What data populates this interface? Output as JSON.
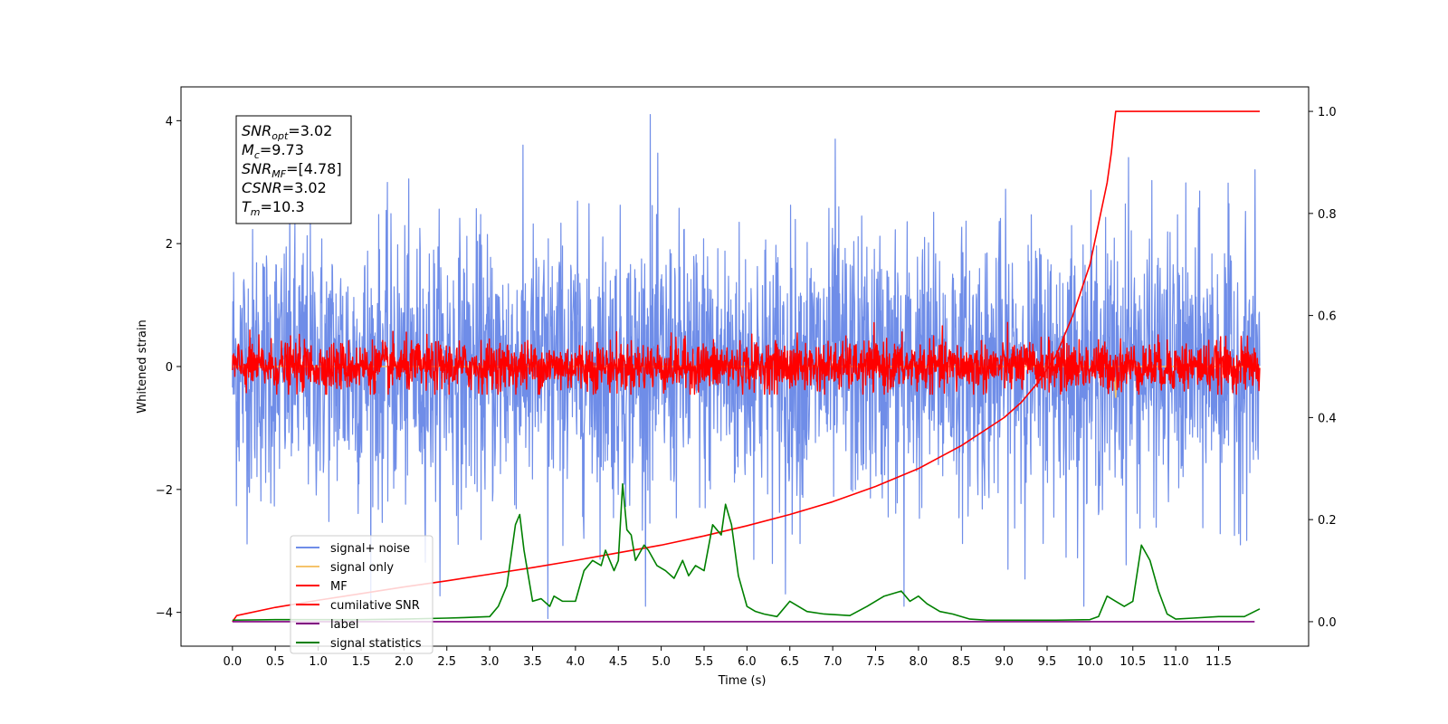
{
  "chart_data": {
    "type": "line",
    "xlabel": "Time (s)",
    "ylabel": "Whitened strain",
    "x_ticks": [
      "0.0",
      "0.5",
      "1.0",
      "1.5",
      "2.0",
      "2.5",
      "3.0",
      "3.5",
      "4.0",
      "4.5",
      "5.0",
      "5.5",
      "6.0",
      "6.5",
      "7.0",
      "7.5",
      "8.0",
      "8.5",
      "9.0",
      "9.5",
      "10.0",
      "10.5",
      "11.0",
      "11.5"
    ],
    "xlim": [
      -0.6,
      12.55
    ],
    "ylim": [
      -4.55,
      4.55
    ],
    "y_ticks": [
      -4,
      -2,
      0,
      2,
      4
    ],
    "y2lim": [
      -0.048,
      1.048
    ],
    "y2_ticks": [
      "0.0",
      "0.2",
      "0.4",
      "0.6",
      "0.8",
      "1.0"
    ],
    "y2_tick_values": [
      0,
      0.2,
      0.4,
      0.6,
      0.8,
      1.0
    ],
    "grid": false,
    "legend_position": "lower-left",
    "annotation": [
      {
        "base": "SNR",
        "sub": "opt",
        "value": "=3.02"
      },
      {
        "base": "M",
        "sub": "c",
        "value": "=9.73"
      },
      {
        "base": "SNR",
        "sub": "MF",
        "value": "=[4.78]"
      },
      {
        "base": "CSNR",
        "sub": "",
        "value": "=3.02"
      },
      {
        "base": "T",
        "sub": "m",
        "value": "=10.3"
      }
    ],
    "series": [
      {
        "name": "signal+ noise",
        "axis": "left",
        "color": "#6f8de8",
        "description": "whitened noise, approx. std 1.1, range about -4.1 to 4.1, t from 0 to 11.98",
        "noise_std": 1.1,
        "x_range": [
          0,
          11.98
        ],
        "spikes": [
          [
            4.87,
            4.1
          ],
          [
            3.68,
            -4.1
          ],
          [
            7.03,
            3.7
          ],
          [
            7.83,
            -3.9
          ],
          [
            10.45,
            3.4
          ],
          [
            6.45,
            -3.7
          ]
        ]
      },
      {
        "name": "signal only",
        "axis": "left",
        "color": "#f5c36b",
        "x": [
          0,
          10.28,
          10.3,
          10.32,
          11.98
        ],
        "y": [
          0,
          0,
          -0.5,
          0,
          0
        ]
      },
      {
        "name": "MF",
        "axis": "left",
        "color": "#ff0000",
        "description": "matched filter output, approx. std 0.2, range about -0.45 to 0.85",
        "noise_std": 0.2,
        "x_range": [
          0,
          11.98
        ]
      },
      {
        "name": "cumilative SNR",
        "axis": "right",
        "color": "#ff0000",
        "x": [
          0,
          0.05,
          0.5,
          1,
          1.5,
          2,
          2.5,
          3,
          3.5,
          4,
          4.5,
          5,
          5.5,
          6,
          6.5,
          7,
          7.5,
          8,
          8.5,
          9,
          9.2,
          9.4,
          9.6,
          9.8,
          10.0,
          10.1,
          10.2,
          10.25,
          10.28,
          10.3,
          11.98
        ],
        "y": [
          0.0,
          0.012,
          0.028,
          0.042,
          0.055,
          0.068,
          0.08,
          0.093,
          0.106,
          0.12,
          0.135,
          0.15,
          0.168,
          0.188,
          0.21,
          0.235,
          0.265,
          0.3,
          0.345,
          0.4,
          0.43,
          0.47,
          0.52,
          0.6,
          0.7,
          0.78,
          0.86,
          0.92,
          0.97,
          1.0,
          1.0
        ]
      },
      {
        "name": "label",
        "axis": "right",
        "color": "#800080",
        "x": [
          0,
          11.92
        ],
        "y": [
          0,
          0
        ]
      },
      {
        "name": "signal statistics",
        "axis": "right",
        "color": "#008000",
        "x": [
          0,
          0.5,
          1,
          1.5,
          2,
          2.5,
          2.7,
          3.0,
          3.1,
          3.2,
          3.3,
          3.35,
          3.4,
          3.5,
          3.6,
          3.7,
          3.75,
          3.85,
          4.0,
          4.1,
          4.2,
          4.3,
          4.35,
          4.45,
          4.5,
          4.55,
          4.6,
          4.65,
          4.7,
          4.8,
          4.85,
          4.95,
          5.05,
          5.15,
          5.25,
          5.32,
          5.4,
          5.5,
          5.6,
          5.7,
          5.75,
          5.82,
          5.9,
          6.0,
          6.1,
          6.2,
          6.35,
          6.5,
          6.6,
          6.7,
          6.9,
          7.2,
          7.4,
          7.6,
          7.8,
          7.9,
          8.0,
          8.1,
          8.25,
          8.4,
          8.6,
          8.8,
          9.2,
          9.6,
          10.0,
          10.1,
          10.2,
          10.3,
          10.4,
          10.5,
          10.6,
          10.7,
          10.8,
          10.9,
          11.0,
          11.2,
          11.5,
          11.8,
          11.98
        ],
        "y": [
          0.003,
          0.004,
          0.004,
          0.004,
          0.005,
          0.007,
          0.008,
          0.01,
          0.03,
          0.07,
          0.19,
          0.21,
          0.14,
          0.04,
          0.045,
          0.03,
          0.05,
          0.04,
          0.04,
          0.1,
          0.12,
          0.11,
          0.14,
          0.1,
          0.12,
          0.27,
          0.18,
          0.17,
          0.12,
          0.15,
          0.14,
          0.11,
          0.1,
          0.085,
          0.12,
          0.09,
          0.11,
          0.1,
          0.19,
          0.17,
          0.23,
          0.19,
          0.09,
          0.03,
          0.02,
          0.015,
          0.01,
          0.04,
          0.03,
          0.02,
          0.015,
          0.012,
          0.03,
          0.05,
          0.06,
          0.04,
          0.05,
          0.035,
          0.02,
          0.015,
          0.005,
          0.003,
          0.003,
          0.003,
          0.004,
          0.01,
          0.05,
          0.04,
          0.03,
          0.04,
          0.15,
          0.12,
          0.06,
          0.015,
          0.005,
          0.007,
          0.01,
          0.01,
          0.025
        ]
      }
    ]
  }
}
